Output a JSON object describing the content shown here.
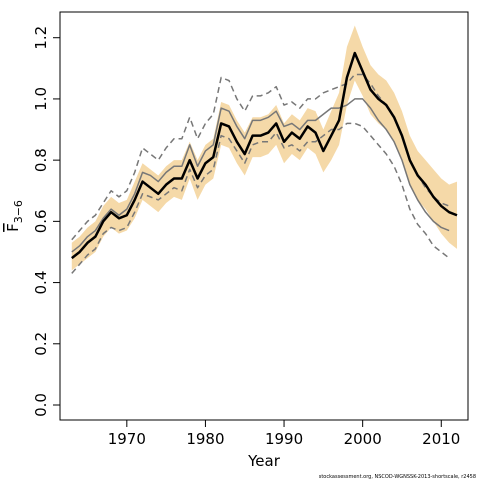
{
  "chart_data": {
    "type": "line",
    "x_label": "Year",
    "y_label": "F",
    "y_label_sub": "3−6",
    "footer": "stockassessment.org, NSCOD-WGNSSK-2013-shortscale, r2458",
    "x": [
      1963,
      1964,
      1965,
      1966,
      1967,
      1968,
      1969,
      1970,
      1971,
      1972,
      1973,
      1974,
      1975,
      1976,
      1977,
      1978,
      1979,
      1980,
      1981,
      1982,
      1983,
      1984,
      1985,
      1986,
      1987,
      1988,
      1989,
      1990,
      1991,
      1992,
      1993,
      1994,
      1995,
      1996,
      1997,
      1998,
      1999,
      2000,
      2001,
      2002,
      2003,
      2004,
      2005,
      2006,
      2007,
      2008,
      2009,
      2010,
      2011,
      2012
    ],
    "xlim": [
      1961.5,
      2013.4
    ],
    "xticks": [
      1970,
      1980,
      1990,
      2000,
      2010
    ],
    "ylim": [
      -0.049,
      1.284
    ],
    "yticks": [
      {
        "value": 0,
        "label": "0.0"
      },
      0.2,
      0.4,
      0.6,
      0.8,
      {
        "value": 1,
        "label": "1.0"
      },
      1.2
    ],
    "band": {
      "color": "#f5d9a8",
      "upper": [
        0.53,
        0.55,
        0.58,
        0.6,
        0.65,
        0.68,
        0.66,
        0.67,
        0.73,
        0.79,
        0.77,
        0.75,
        0.78,
        0.8,
        0.8,
        0.86,
        0.8,
        0.85,
        0.87,
        0.99,
        0.98,
        0.93,
        0.89,
        0.94,
        0.94,
        0.95,
        0.98,
        0.92,
        0.95,
        0.93,
        0.97,
        0.96,
        0.9,
        0.96,
        1.02,
        1.17,
        1.24,
        1.17,
        1.11,
        1.08,
        1.06,
        1.02,
        0.96,
        0.88,
        0.83,
        0.8,
        0.77,
        0.74,
        0.72,
        0.73
      ],
      "lower": [
        0.44,
        0.46,
        0.48,
        0.5,
        0.55,
        0.58,
        0.56,
        0.57,
        0.61,
        0.67,
        0.65,
        0.63,
        0.66,
        0.68,
        0.67,
        0.74,
        0.67,
        0.72,
        0.74,
        0.85,
        0.84,
        0.79,
        0.75,
        0.81,
        0.81,
        0.82,
        0.85,
        0.79,
        0.82,
        0.8,
        0.84,
        0.82,
        0.76,
        0.8,
        0.85,
        0.98,
        1.06,
        1.01,
        0.95,
        0.92,
        0.9,
        0.86,
        0.8,
        0.72,
        0.67,
        0.64,
        0.6,
        0.56,
        0.53,
        0.51
      ]
    },
    "series": [
      {
        "color": "#777777",
        "dash": true,
        "width": 1.5,
        "values": [
          0.54,
          0.57,
          0.6,
          0.62,
          0.66,
          0.7,
          0.68,
          0.7,
          0.76,
          0.84,
          0.82,
          0.8,
          0.84,
          0.87,
          0.87,
          0.94,
          0.87,
          0.92,
          0.95,
          1.07,
          1.06,
          1.0,
          0.96,
          1.01,
          1.01,
          1.02,
          1.04,
          0.98,
          0.99,
          0.97,
          1.0,
          1.0,
          1.02,
          1.03,
          1.04,
          1.05,
          1.08,
          1.08,
          1.05,
          1.01,
          0.98,
          0.94,
          0.88,
          0.8,
          0.75,
          0.71,
          0.68,
          0.66,
          0.65,
          null
        ]
      },
      {
        "color": "#777777",
        "dash": true,
        "width": 1.5,
        "values": [
          0.43,
          0.46,
          0.49,
          0.51,
          0.56,
          0.58,
          0.57,
          0.58,
          0.63,
          0.69,
          0.68,
          0.67,
          0.69,
          0.71,
          0.7,
          0.77,
          0.71,
          0.75,
          0.77,
          0.88,
          0.87,
          0.83,
          0.79,
          0.85,
          0.86,
          0.86,
          0.89,
          0.84,
          0.85,
          0.83,
          0.86,
          0.86,
          0.88,
          0.9,
          0.9,
          0.92,
          0.92,
          0.91,
          0.88,
          0.85,
          0.82,
          0.78,
          0.72,
          0.64,
          0.59,
          0.56,
          0.52,
          0.5,
          0.48,
          null
        ]
      },
      {
        "color": "#777777",
        "dash": false,
        "width": 1.5,
        "values": [
          0.5,
          0.52,
          0.55,
          0.57,
          0.61,
          0.64,
          0.62,
          0.64,
          0.69,
          0.76,
          0.75,
          0.73,
          0.76,
          0.78,
          0.78,
          0.85,
          0.78,
          0.83,
          0.85,
          0.97,
          0.96,
          0.91,
          0.87,
          0.93,
          0.93,
          0.94,
          0.96,
          0.91,
          0.92,
          0.9,
          0.93,
          0.93,
          0.95,
          0.97,
          0.97,
          0.98,
          1.0,
          1.0,
          0.97,
          0.93,
          0.9,
          0.86,
          0.8,
          0.72,
          0.67,
          0.63,
          0.6,
          0.58,
          0.57,
          null
        ]
      },
      {
        "color": "#000000",
        "dash": false,
        "width": 2.5,
        "values": [
          0.48,
          0.5,
          0.53,
          0.55,
          0.6,
          0.63,
          0.61,
          0.62,
          0.67,
          0.73,
          0.71,
          0.69,
          0.72,
          0.74,
          0.74,
          0.8,
          0.74,
          0.79,
          0.81,
          0.92,
          0.91,
          0.86,
          0.82,
          0.88,
          0.88,
          0.89,
          0.92,
          0.86,
          0.89,
          0.87,
          0.91,
          0.89,
          0.83,
          0.88,
          0.93,
          1.07,
          1.15,
          1.09,
          1.03,
          1.0,
          0.98,
          0.94,
          0.88,
          0.8,
          0.75,
          0.72,
          0.68,
          0.65,
          0.63,
          0.62
        ]
      }
    ]
  }
}
